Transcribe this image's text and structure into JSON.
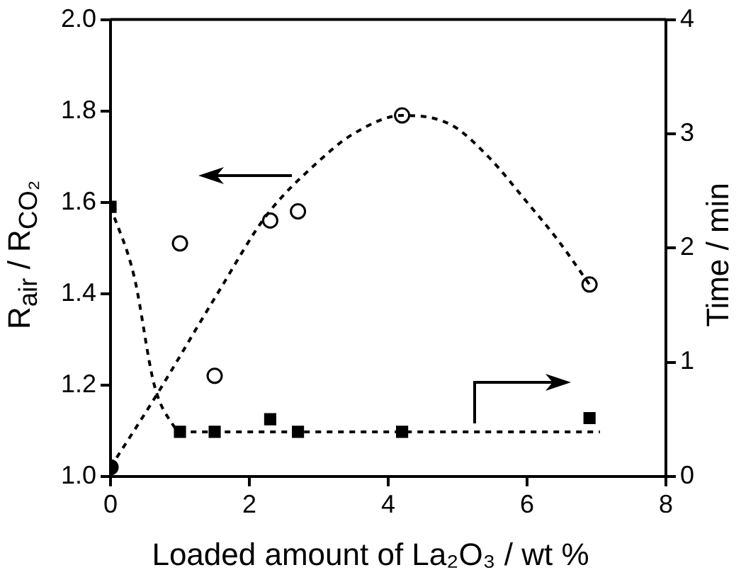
{
  "chart_data": {
    "type": "scatter",
    "xlabel": "Loaded amount of La₂O₃ / wt %",
    "ylabel": "R$_{air}$ / R$_{CO₂}$",
    "y2label": "Time / min",
    "xlim": [
      0,
      8
    ],
    "xticks": [
      0,
      2,
      4,
      6,
      8
    ],
    "ylim": [
      1.0,
      2.0
    ],
    "yticks": [
      {
        "value": 1.0,
        "label": "1.0"
      },
      {
        "value": 1.2,
        "label": "1.2"
      },
      {
        "value": 1.4,
        "label": "1.4"
      },
      {
        "value": 1.6,
        "label": "1.6"
      },
      {
        "value": 1.8,
        "label": "1.8"
      },
      {
        "value": 2.0,
        "label": "2.0"
      }
    ],
    "y2lim": [
      0,
      4
    ],
    "y2ticks": [
      0,
      1,
      2,
      3,
      4
    ],
    "grid": false,
    "legend": false,
    "series": [
      {
        "type": "line",
        "line_style": "dashed",
        "marker": "none",
        "color": "#000000",
        "x": [
          0,
          0.63,
          1.54,
          2.24,
          3,
          3.5,
          4.2,
          4.9,
          5.44,
          6,
          6.43,
          6.9
        ],
        "values": [
          1.02,
          1.17,
          1.4,
          1.57,
          1.69,
          1.75,
          1.79,
          1.77,
          1.7,
          1.6,
          1.52,
          1.42
        ]
      },
      {
        "type": "line",
        "axis": "y2",
        "line_style": "dashed",
        "marker": "none",
        "color": "#000000",
        "x": [
          0,
          0.34,
          0.63,
          0.9,
          1,
          7.05
        ],
        "values": [
          2.36,
          1.75,
          0.8,
          0.45,
          0.39,
          0.39
        ]
      },
      {
        "type": "scatter",
        "marker": "circle",
        "color": "#000000",
        "colors": [
          "#000000",
          "#ffffff",
          "#ffffff",
          "#ffffff",
          "#ffffff",
          "#ffffff",
          "#ffffff"
        ],
        "x": [
          0,
          1,
          1.5,
          2.3,
          2.7,
          4.2,
          6.9
        ],
        "values": [
          1.02,
          1.51,
          1.22,
          1.56,
          1.58,
          1.79,
          1.42
        ]
      },
      {
        "type": "scatter",
        "axis": "y2",
        "marker": "square",
        "color": "#000000",
        "x": [
          0,
          1,
          1.5,
          2.3,
          2.7,
          4.2,
          6.9
        ],
        "values": [
          2.36,
          0.39,
          0.39,
          0.5,
          0.39,
          0.39,
          0.51
        ]
      }
    ]
  }
}
